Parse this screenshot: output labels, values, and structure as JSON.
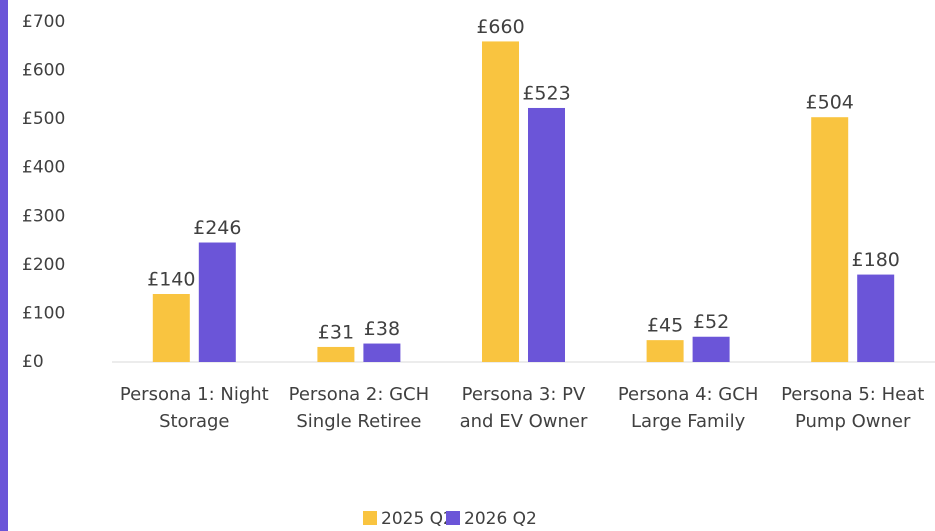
{
  "chart_data": {
    "type": "bar",
    "categories": [
      "Persona 1: Night Storage",
      "Persona 2: GCH Single Retiree",
      "Persona 3: PV and EV Owner",
      "Persona 4: GCH Large Family",
      "Persona 5: Heat Pump Owner"
    ],
    "series": [
      {
        "name": "2025 Q2",
        "color": "#f9c440",
        "values": [
          140,
          31,
          660,
          45,
          504
        ],
        "value_labels": [
          "£140",
          "£31",
          "£660",
          "£45",
          "£504"
        ]
      },
      {
        "name": "2026 Q2",
        "color": "#6b55d8",
        "values": [
          246,
          38,
          523,
          52,
          180
        ],
        "value_labels": [
          "£246",
          "£38",
          "£523",
          "£52",
          "£180"
        ]
      }
    ],
    "ylim": [
      0,
      700
    ],
    "yticks": [
      {
        "value": 0,
        "label": "£0"
      },
      {
        "value": 100,
        "label": "£100"
      },
      {
        "value": 200,
        "label": "£200"
      },
      {
        "value": 300,
        "label": "£300"
      },
      {
        "value": 400,
        "label": "£400"
      },
      {
        "value": 500,
        "label": "£500"
      },
      {
        "value": 600,
        "label": "£600"
      },
      {
        "value": 700,
        "label": "£700"
      }
    ],
    "grid": false,
    "legend": "bottom"
  }
}
